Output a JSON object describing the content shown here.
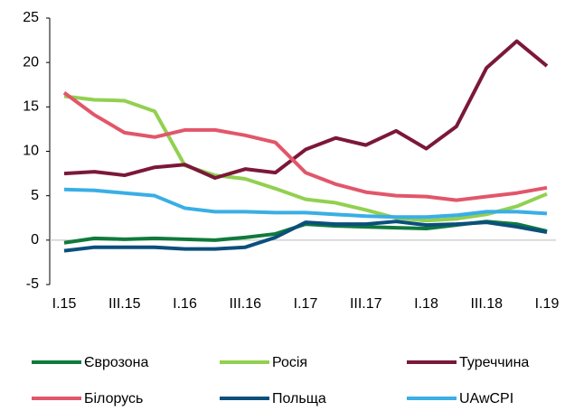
{
  "chart_data": {
    "type": "line",
    "categories": [
      "I.15",
      null,
      "III.15",
      null,
      "I.16",
      null,
      "III.16",
      null,
      "I.17",
      null,
      "III.17",
      null,
      "I.18",
      null,
      "III.18",
      null,
      "I.19"
    ],
    "series": [
      {
        "name": "Єврозона",
        "color": "#0f7a3c",
        "values": [
          -0.3,
          0.2,
          0.1,
          0.2,
          0.1,
          0.0,
          0.3,
          0.7,
          1.8,
          1.6,
          1.5,
          1.4,
          1.3,
          1.7,
          2.1,
          1.8,
          1.0
        ]
      },
      {
        "name": "Росія",
        "color": "#92d050",
        "values": [
          16.2,
          15.8,
          15.7,
          14.5,
          8.4,
          7.3,
          6.9,
          5.8,
          4.6,
          4.2,
          3.4,
          2.5,
          2.2,
          2.4,
          2.9,
          3.8,
          5.2
        ]
      },
      {
        "name": "Туреччина",
        "color": "#7b1838",
        "values": [
          7.5,
          7.7,
          7.3,
          8.2,
          8.5,
          7.0,
          8.0,
          7.6,
          10.2,
          11.5,
          10.7,
          12.3,
          10.3,
          12.8,
          19.4,
          22.4,
          19.6
        ]
      },
      {
        "name": "Білорусь",
        "color": "#e2566a",
        "values": [
          16.6,
          14.1,
          12.1,
          11.6,
          12.4,
          12.4,
          11.8,
          11.0,
          7.6,
          6.3,
          5.4,
          5.0,
          4.9,
          4.5,
          4.9,
          5.3,
          5.9
        ]
      },
      {
        "name": "Польща",
        "color": "#0b4f7c",
        "values": [
          -1.2,
          -0.8,
          -0.8,
          -0.8,
          -1.0,
          -1.0,
          -0.8,
          0.3,
          2.0,
          1.8,
          1.8,
          2.1,
          1.7,
          1.8,
          2.0,
          1.5,
          0.9
        ]
      },
      {
        "name": "UAwCPI",
        "color": "#3aaee5",
        "values": [
          5.7,
          5.6,
          5.3,
          5.0,
          3.6,
          3.2,
          3.2,
          3.1,
          3.1,
          2.9,
          2.7,
          2.6,
          2.6,
          2.8,
          3.2,
          3.2,
          3.0
        ]
      }
    ],
    "ylim": [
      -5,
      25
    ],
    "yticks": [
      -5,
      0,
      5,
      10,
      15,
      20,
      25
    ]
  }
}
